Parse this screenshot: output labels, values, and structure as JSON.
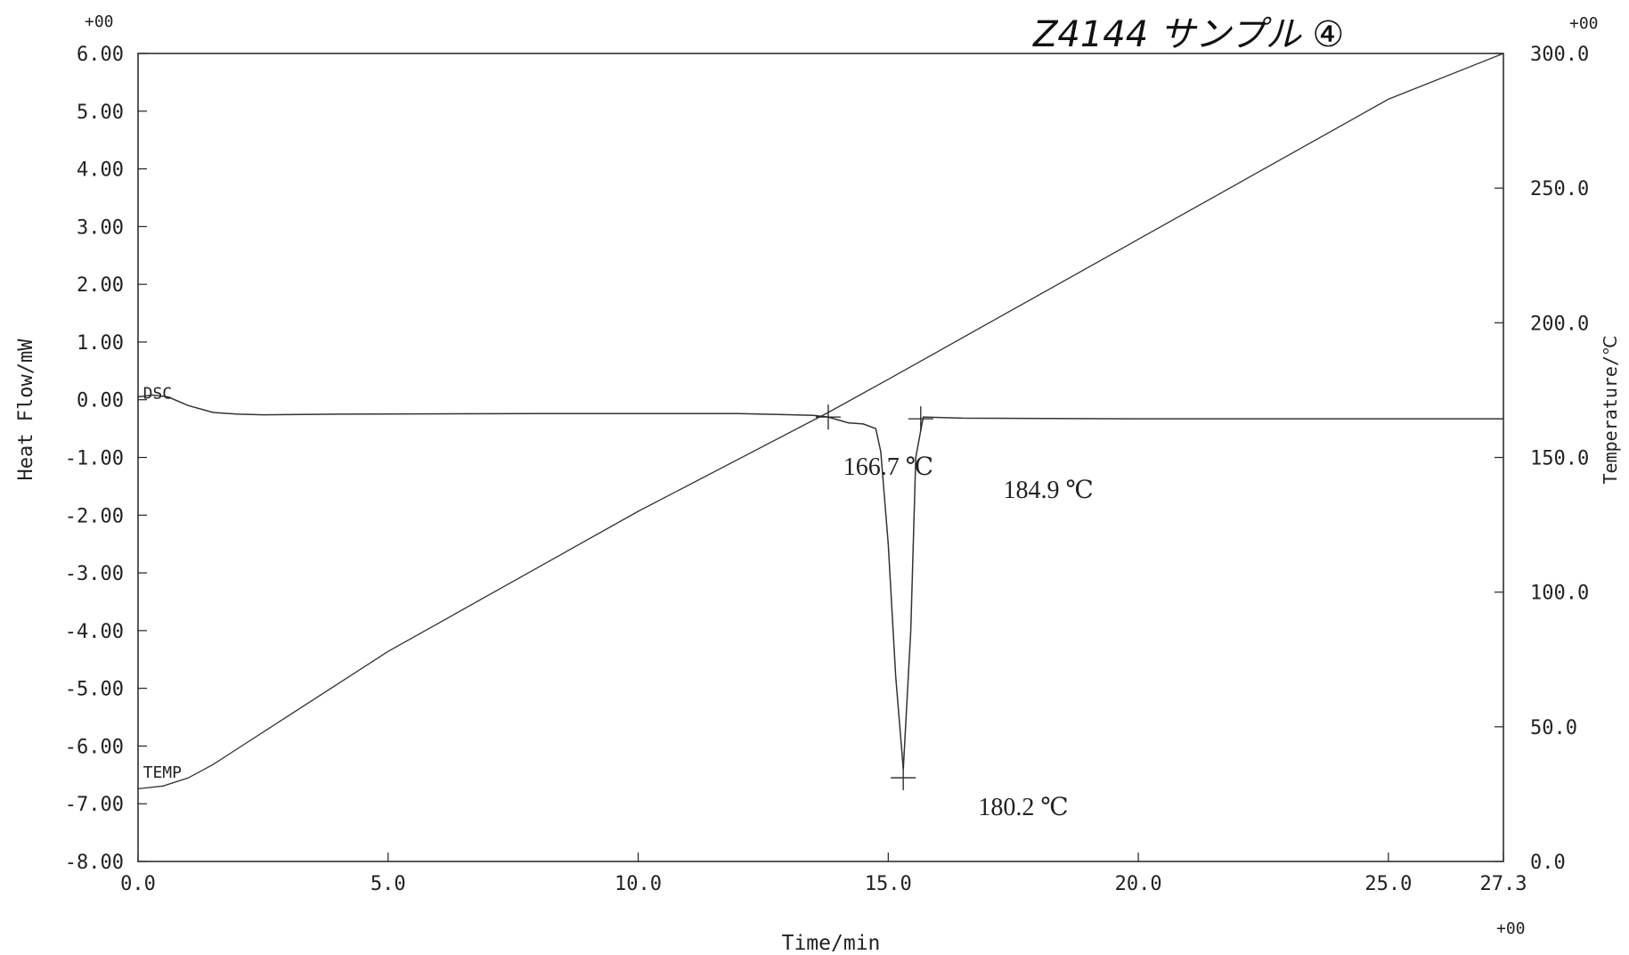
{
  "header": {
    "handwritten_note": "Z4144 サンプル ④",
    "left_exponent": "+00",
    "right_exponent": "+00",
    "x_exponent": "+00"
  },
  "chart_data": {
    "type": "line",
    "xlabel": "Time/min",
    "ylabel": "Heat Flow/mW",
    "y2label": "Temperature/℃",
    "xlim": [
      0.0,
      27.3
    ],
    "ylim": [
      -8.0,
      6.0
    ],
    "y2lim": [
      0.0,
      300.0
    ],
    "x_ticks": [
      "0.0",
      "5.0",
      "10.0",
      "15.0",
      "20.0",
      "25.0",
      "27.3"
    ],
    "y_ticks": [
      "6.00",
      "5.00",
      "4.00",
      "3.00",
      "2.00",
      "1.00",
      "0.00",
      "-1.00",
      "-2.00",
      "-3.00",
      "-4.00",
      "-5.00",
      "-6.00",
      "-7.00",
      "-8.00"
    ],
    "y2_ticks": [
      "300.0",
      "250.0",
      "200.0",
      "150.0",
      "100.0",
      "50.0",
      "0.0"
    ],
    "series": [
      {
        "name": "DSC",
        "axis": "left",
        "x": [
          0.0,
          0.3,
          0.6,
          1.0,
          1.5,
          2.0,
          2.5,
          4.0,
          8.0,
          12.0,
          13.5,
          13.8,
          14.2,
          14.5,
          14.75,
          14.85,
          15.0,
          15.15,
          15.3,
          15.45,
          15.55,
          15.7,
          16.5,
          20.0,
          25.0,
          27.3
        ],
        "y": [
          0.05,
          0.08,
          0.05,
          -0.1,
          -0.22,
          -0.25,
          -0.26,
          -0.25,
          -0.24,
          -0.24,
          -0.27,
          -0.3,
          -0.4,
          -0.42,
          -0.5,
          -0.9,
          -2.5,
          -4.8,
          -6.4,
          -4.0,
          -1.0,
          -0.3,
          -0.32,
          -0.33,
          -0.33,
          -0.33
        ]
      },
      {
        "name": "TEMP",
        "axis": "right",
        "x": [
          0.0,
          0.5,
          1.0,
          1.5,
          2.0,
          3.0,
          5.0,
          10.0,
          13.8,
          15.0,
          20.0,
          25.0,
          27.3
        ],
        "y": [
          27.0,
          28.0,
          31.0,
          36.0,
          42.0,
          54.0,
          78.0,
          130.0,
          166.7,
          179.0,
          231.0,
          283.0,
          300.0
        ]
      }
    ],
    "series_labels": [
      {
        "text": "DSC",
        "x": 0.1,
        "y": 0.02
      },
      {
        "text": "TEMP",
        "x": 0.1,
        "y": -6.55
      }
    ],
    "annotations": [
      {
        "text": "166.7 ℃",
        "x": 13.8,
        "y": -0.3,
        "label_x": 14.1,
        "label_y": -1.3
      },
      {
        "text": "184.9 ℃",
        "x": 15.65,
        "y": -0.33,
        "label_x": 17.3,
        "label_y": -1.7
      },
      {
        "text": "180.2 ℃",
        "x": 15.3,
        "y": -6.55,
        "label_x": 16.8,
        "label_y": -7.2
      }
    ]
  }
}
